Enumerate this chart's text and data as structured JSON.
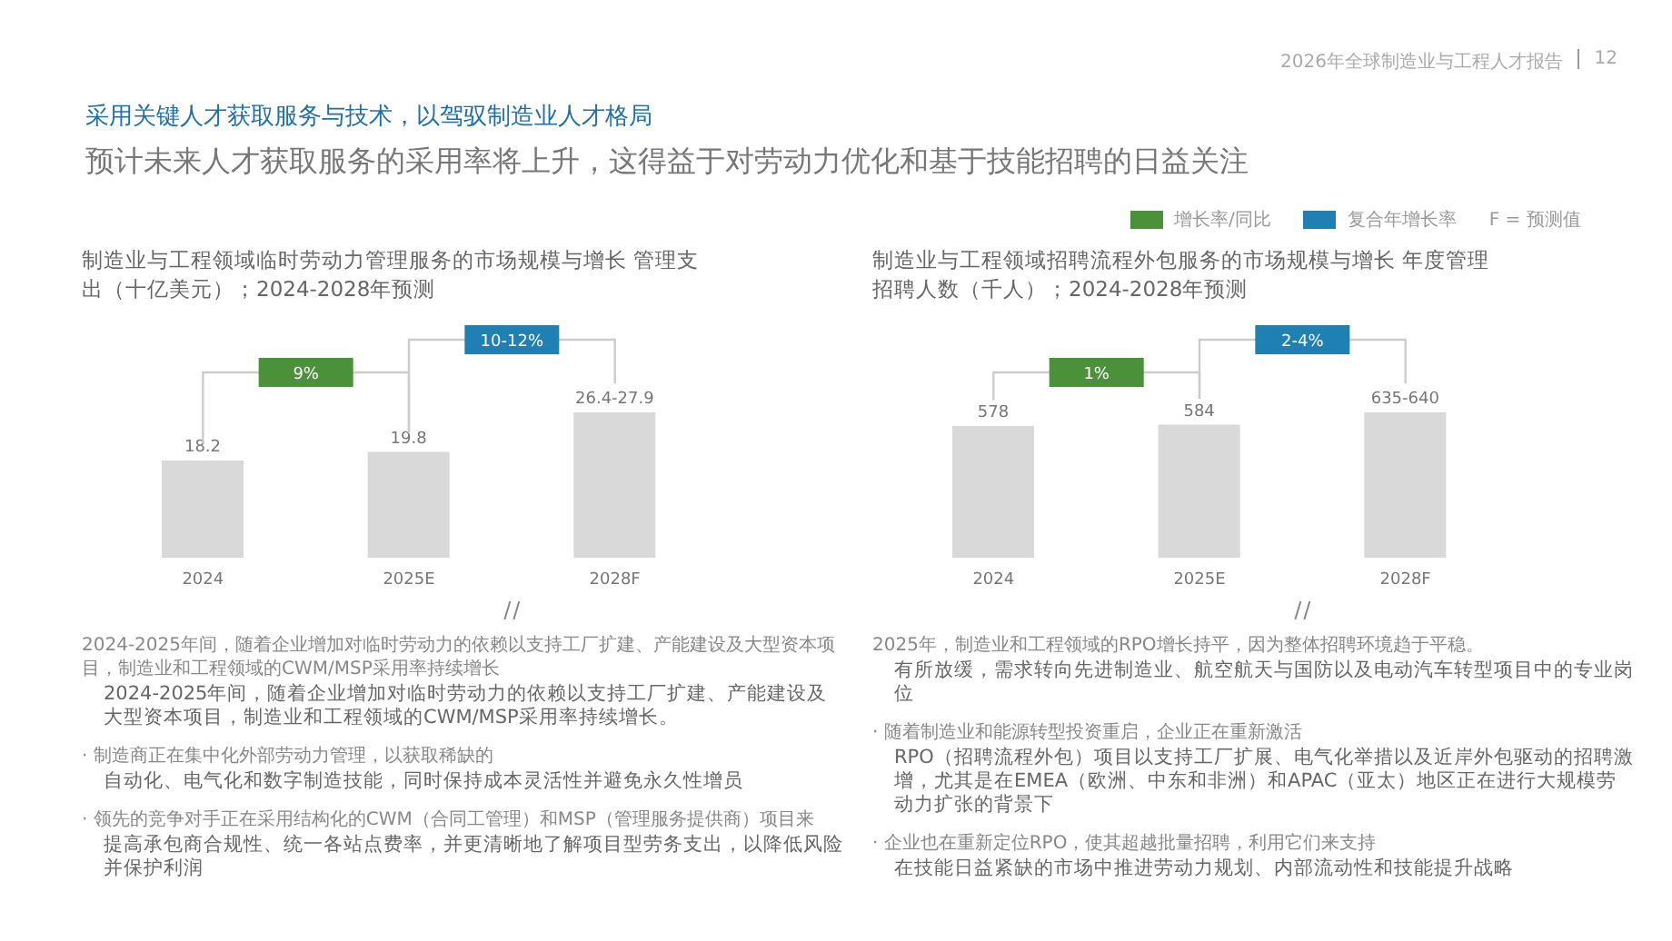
{
  "chart_data": [
    {
      "type": "bar",
      "title": "制造业与工程领域临时劳动力管理服务的市场规模与增长 管理支出（十亿美元）；2024-2028年预测",
      "categories": [
        "2024",
        "2025E",
        "2028F"
      ],
      "values": [
        18.2,
        19.8,
        27.2
      ],
      "value_labels": [
        "18.2",
        "19.8",
        "26.4-27.9"
      ],
      "color": "#d9d9d9",
      "annotations": [
        "9%",
        "10-12%",
        "2026年全球制造业与工程人才报告",
        "12",
        "采用关键人才获取服务与技术，以驾驭制造业人才格局",
        "预计未来人才获取服务的采用率将上升，这得益于对劳动力优化和基于技能招聘的日益关注",
        "2024-2025年间，随着企业增加对临时劳动力的依赖以支持工厂扩建、产能建设及大型资本项目，制造业和工程领域的CWM/MSP采用率持续增长",
        "2024-2025年间，随着企业增加对临时劳动力的依赖以支持工厂扩建、产能建设及大型资本项目，制造业和工程领域的CWM/MSP采用率持续增长。",
        "· 制造商正在集中化外部劳动力管理，以获取稀缺的",
        "自动化、电气化和数字制造技能，同时保持成本灵活性并避免永久性增员",
        "· 领先的竞争对手正在采用结构化的CWM（合同工管理）和MSP（管理服务提供商）项目来",
        "提高承包商合规性、统一各站点费率，并更清晰地了解项目型劳务支出，以降低风险并保护利润"
      ]
    },
    {
      "type": "bar",
      "title": "制造业与工程领域招聘流程外包服务的市场规模与增长 年度管理招聘人数（千人）；2024-2028年预测",
      "categories": [
        "2024",
        "2025E",
        "2028F"
      ],
      "values": [
        578,
        584,
        638
      ],
      "value_labels": [
        "578",
        "584",
        "635-640"
      ],
      "color": "#d9d9d9",
      "annotations": [
        "1%",
        "2-4%",
        "增长率/同比",
        "复合年增长率",
        "F = 预测值",
        "2025年，制造业和工程领域的RPO增长持平，因为整体招聘环境趋于平稳。",
        "有所放缓，需求转向先进制造业、航空航天与国防以及电动汽车转型项目中的专业岗位",
        "· 随着制造业和能源转型投资重启，企业正在重新激活",
        "RPO（招聘流程外包）项目以支持工厂扩展、电气化举措以及近岸外包驱动的招聘激增，尤其是在EMEA（欧洲、中东和非洲）和APAC（亚太）地区正在进行大规模劳动力扩张的背景下",
        "· 企业也在重新定位RPO，使其超越批量招聘，利用它们来支持",
        "在技能日益紧缺的市场中推进劳动力规划、内部流动性和技能提升战略"
      ]
    }
  ]
}
